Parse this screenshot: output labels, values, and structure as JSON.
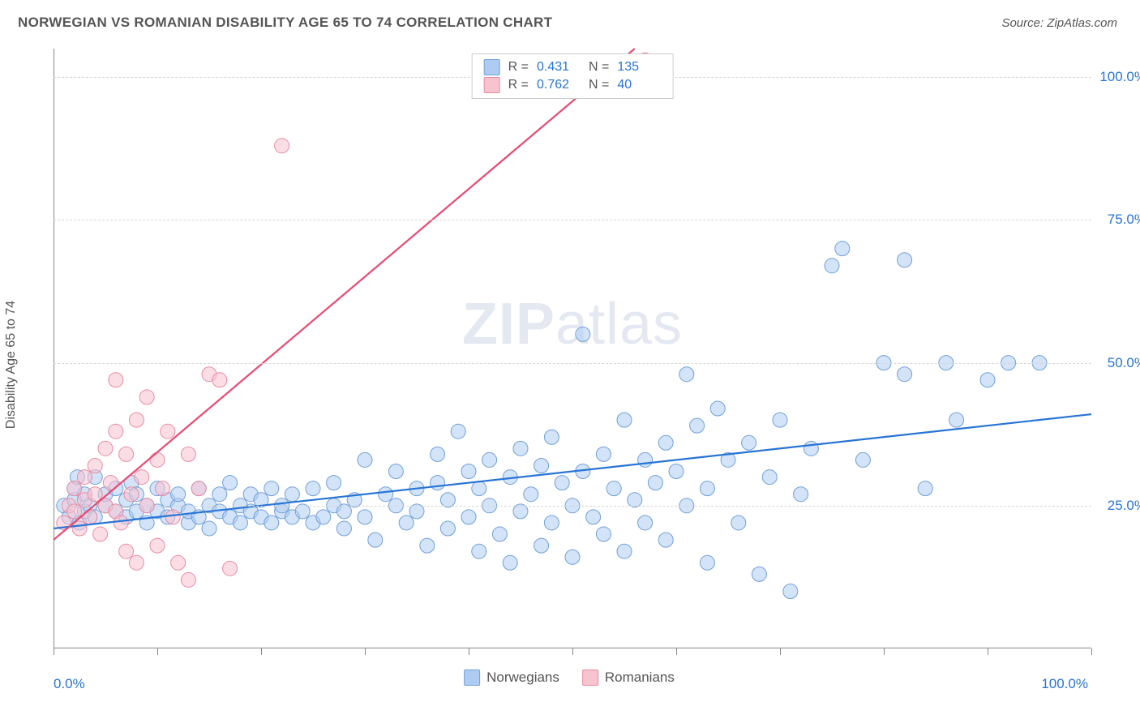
{
  "title": "NORWEGIAN VS ROMANIAN DISABILITY AGE 65 TO 74 CORRELATION CHART",
  "source_label": "Source: ZipAtlas.com",
  "watermark": {
    "bold": "ZIP",
    "rest": "atlas"
  },
  "y_axis_title": "Disability Age 65 to 74",
  "chart": {
    "type": "scatter",
    "background_color": "#ffffff",
    "grid_color": "#d6d6d6",
    "axis_color": "#888888",
    "tick_label_color": "#2874d6",
    "tick_fontsize": 17,
    "axis_label_fontsize": 16,
    "xlim": [
      0,
      100
    ],
    "ylim": [
      0,
      105
    ],
    "x_ticks": [
      0,
      10,
      20,
      30,
      40,
      50,
      60,
      70,
      80,
      90,
      100
    ],
    "y_gridlines": [
      25,
      50,
      75,
      100
    ],
    "y_tick_labels": [
      "25.0%",
      "50.0%",
      "75.0%",
      "100.0%"
    ],
    "x_origin_label": "0.0%",
    "x_max_label": "100.0%",
    "marker_radius": 9,
    "marker_opacity": 0.55,
    "line_width": 2.2,
    "series": [
      {
        "name": "Norwegians",
        "legend_label": "Norwegians",
        "fill_color": "#aeccf2",
        "stroke_color": "#6fa0d8",
        "line_color": "#2874d6",
        "R": "0.431",
        "N": "135",
        "trend": {
          "x1": 0,
          "y1": 21,
          "x2": 100,
          "y2": 41
        },
        "points": [
          [
            1,
            25
          ],
          [
            1.5,
            23
          ],
          [
            2,
            26
          ],
          [
            2,
            28
          ],
          [
            2.3,
            30
          ],
          [
            2.5,
            22
          ],
          [
            3,
            24
          ],
          [
            3,
            27
          ],
          [
            3.5,
            25
          ],
          [
            4,
            23
          ],
          [
            4,
            30
          ],
          [
            5,
            25
          ],
          [
            5,
            27
          ],
          [
            6,
            24
          ],
          [
            6,
            28
          ],
          [
            7,
            23
          ],
          [
            7,
            26
          ],
          [
            7.5,
            29
          ],
          [
            8,
            24
          ],
          [
            8,
            27
          ],
          [
            9,
            22
          ],
          [
            9,
            25
          ],
          [
            10,
            24
          ],
          [
            10,
            28
          ],
          [
            11,
            23
          ],
          [
            11,
            26
          ],
          [
            12,
            25
          ],
          [
            12,
            27
          ],
          [
            13,
            22
          ],
          [
            13,
            24
          ],
          [
            14,
            23
          ],
          [
            14,
            28
          ],
          [
            15,
            21
          ],
          [
            15,
            25
          ],
          [
            16,
            24
          ],
          [
            16,
            27
          ],
          [
            17,
            23
          ],
          [
            17,
            29
          ],
          [
            18,
            22
          ],
          [
            18,
            25
          ],
          [
            19,
            24
          ],
          [
            19,
            27
          ],
          [
            20,
            23
          ],
          [
            20,
            26
          ],
          [
            21,
            22
          ],
          [
            21,
            28
          ],
          [
            22,
            24
          ],
          [
            22,
            25
          ],
          [
            23,
            23
          ],
          [
            23,
            27
          ],
          [
            24,
            24
          ],
          [
            25,
            22
          ],
          [
            25,
            28
          ],
          [
            26,
            23
          ],
          [
            27,
            25
          ],
          [
            27,
            29
          ],
          [
            28,
            21
          ],
          [
            28,
            24
          ],
          [
            29,
            26
          ],
          [
            30,
            23
          ],
          [
            30,
            33
          ],
          [
            31,
            19
          ],
          [
            32,
            27
          ],
          [
            33,
            25
          ],
          [
            33,
            31
          ],
          [
            34,
            22
          ],
          [
            35,
            28
          ],
          [
            35,
            24
          ],
          [
            36,
            18
          ],
          [
            37,
            29
          ],
          [
            37,
            34
          ],
          [
            38,
            21
          ],
          [
            38,
            26
          ],
          [
            39,
            38
          ],
          [
            40,
            23
          ],
          [
            40,
            31
          ],
          [
            41,
            17
          ],
          [
            41,
            28
          ],
          [
            42,
            25
          ],
          [
            42,
            33
          ],
          [
            43,
            20
          ],
          [
            44,
            30
          ],
          [
            44,
            15
          ],
          [
            45,
            24
          ],
          [
            45,
            35
          ],
          [
            46,
            27
          ],
          [
            47,
            18
          ],
          [
            47,
            32
          ],
          [
            48,
            22
          ],
          [
            48,
            37
          ],
          [
            49,
            29
          ],
          [
            50,
            25
          ],
          [
            50,
            16
          ],
          [
            51,
            31
          ],
          [
            51,
            55
          ],
          [
            52,
            23
          ],
          [
            53,
            34
          ],
          [
            53,
            20
          ],
          [
            54,
            28
          ],
          [
            55,
            40
          ],
          [
            55,
            17
          ],
          [
            56,
            26
          ],
          [
            57,
            33
          ],
          [
            57,
            22
          ],
          [
            58,
            29
          ],
          [
            59,
            36
          ],
          [
            59,
            19
          ],
          [
            60,
            31
          ],
          [
            61,
            25
          ],
          [
            61,
            48
          ],
          [
            62,
            39
          ],
          [
            63,
            15
          ],
          [
            63,
            28
          ],
          [
            64,
            42
          ],
          [
            65,
            33
          ],
          [
            66,
            22
          ],
          [
            67,
            36
          ],
          [
            68,
            13
          ],
          [
            69,
            30
          ],
          [
            70,
            40
          ],
          [
            71,
            10
          ],
          [
            72,
            27
          ],
          [
            73,
            35
          ],
          [
            75,
            67
          ],
          [
            76,
            70
          ],
          [
            78,
            33
          ],
          [
            80,
            50
          ],
          [
            82,
            48
          ],
          [
            82,
            68
          ],
          [
            84,
            28
          ],
          [
            86,
            50
          ],
          [
            87,
            40
          ],
          [
            90,
            47
          ],
          [
            92,
            50
          ],
          [
            95,
            50
          ]
        ]
      },
      {
        "name": "Romanians",
        "legend_label": "Romanians",
        "fill_color": "#f7c3cf",
        "stroke_color": "#e98ba1",
        "line_color": "#e84a72",
        "R": "0.762",
        "N": "40",
        "trend": {
          "x1": 0,
          "y1": 19,
          "x2": 56,
          "y2": 105
        },
        "points": [
          [
            1,
            22
          ],
          [
            1.5,
            25
          ],
          [
            2,
            24
          ],
          [
            2,
            28
          ],
          [
            2.5,
            21
          ],
          [
            3,
            26
          ],
          [
            3,
            30
          ],
          [
            3.5,
            23
          ],
          [
            4,
            27
          ],
          [
            4,
            32
          ],
          [
            4.5,
            20
          ],
          [
            5,
            25
          ],
          [
            5,
            35
          ],
          [
            5.5,
            29
          ],
          [
            6,
            24
          ],
          [
            6,
            38
          ],
          [
            6,
            47
          ],
          [
            6.5,
            22
          ],
          [
            7,
            34
          ],
          [
            7,
            17
          ],
          [
            7.5,
            27
          ],
          [
            8,
            40
          ],
          [
            8,
            15
          ],
          [
            8.5,
            30
          ],
          [
            9,
            25
          ],
          [
            9,
            44
          ],
          [
            10,
            33
          ],
          [
            10,
            18
          ],
          [
            10.5,
            28
          ],
          [
            11,
            38
          ],
          [
            11.5,
            23
          ],
          [
            12,
            15
          ],
          [
            13,
            34
          ],
          [
            13,
            12
          ],
          [
            14,
            28
          ],
          [
            15,
            48
          ],
          [
            16,
            47
          ],
          [
            17,
            14
          ],
          [
            22,
            88
          ],
          [
            57,
            103
          ]
        ]
      }
    ]
  },
  "legend_top_labels": {
    "R": "R =",
    "N": "N ="
  }
}
